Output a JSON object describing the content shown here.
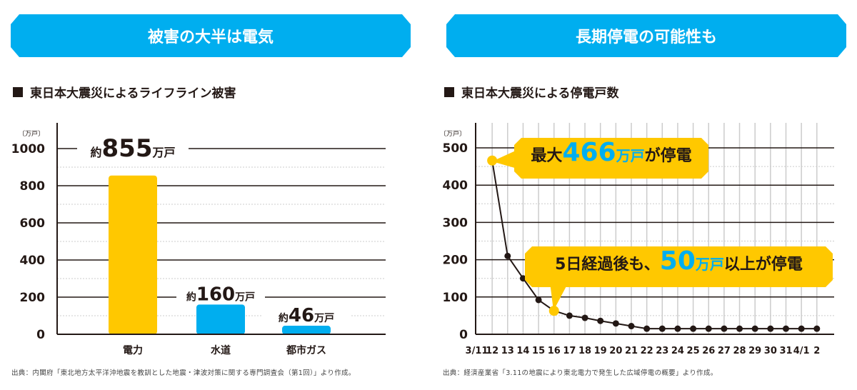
{
  "left": {
    "banner": "被害の大半は電気",
    "subtitle": "東日本大震災によるライフライン被害",
    "source": "出典：内閣府「東北地方太平洋沖地震を教訓とした地震・津波対策に関する専門調査会（第1回）」より作成。"
  },
  "right": {
    "banner": "長期停電の可能性も",
    "subtitle": "東日本大震災による停電戸数",
    "source": "出典：経済産業省「3.11の地震により東北電力で発生した広域停電の概要」より作成。",
    "callout1": {
      "pre": "最大",
      "num": "466",
      "unit": "万戸",
      "post": "が停電"
    },
    "callout2": {
      "pre": "5日経過後も、",
      "num": "50",
      "unit": "万戸",
      "post": "以上が停電"
    }
  },
  "chart_data": [
    {
      "type": "bar",
      "unit_label": "〔万戸〕",
      "categories": [
        "電力",
        "水道",
        "都市ガス"
      ],
      "values": [
        855,
        160,
        46
      ],
      "data_labels": [
        {
          "prefix": "約",
          "num": "855",
          "unit": "万戸"
        },
        {
          "prefix": "約",
          "num": "160",
          "unit": "万戸"
        },
        {
          "prefix": "約",
          "num": "46",
          "unit": "万戸"
        }
      ],
      "colors": [
        "#ffc800",
        "#00aeef",
        "#00aeef"
      ],
      "yticks": [
        "0",
        "200",
        "400",
        "600",
        "800",
        "1000"
      ],
      "ylim": [
        0,
        1000
      ],
      "grid": true
    },
    {
      "type": "line",
      "unit_label": "〔万戸〕",
      "x": [
        "3/11",
        "12",
        "13",
        "14",
        "15",
        "16",
        "17",
        "18",
        "19",
        "20",
        "21",
        "22",
        "23",
        "24",
        "25",
        "26",
        "27",
        "28",
        "29",
        "30",
        "31",
        "4/1",
        "2"
      ],
      "values": [
        null,
        466,
        210,
        150,
        92,
        63,
        50,
        44,
        36,
        29,
        22,
        15,
        15,
        15,
        15,
        15,
        15,
        15,
        15,
        15,
        15,
        15,
        15
      ],
      "highlight_points": [
        "12",
        "16"
      ],
      "line_color": "#231815",
      "highlight_color": "#ffc800",
      "yticks": [
        "0",
        "100",
        "200",
        "300",
        "400",
        "500"
      ],
      "ylim": [
        0,
        500
      ],
      "grid": true
    }
  ]
}
